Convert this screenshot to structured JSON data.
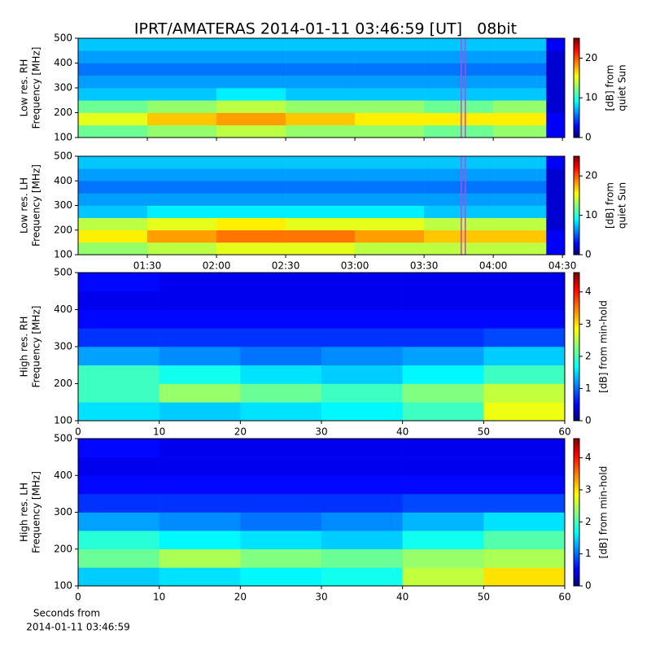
{
  "title": "IPRT/AMATERAS 2014-01-11 03:46:59 [UT]   08bit",
  "xlabel": [
    "Seconds from",
    "2014-01-11 03:46:59"
  ],
  "chart_data": [
    {
      "type": "heatmap",
      "ylabel": [
        "Low res. RH",
        "Frequency [MHz]"
      ],
      "colorbar_label": [
        "[dB] from",
        "quiet Sun"
      ],
      "ylim": [
        100,
        500
      ],
      "yticks": [
        100,
        200,
        300,
        400,
        500
      ],
      "xlim": [
        60,
        271
      ],
      "xticks": [
        90,
        120,
        150,
        180,
        210,
        240,
        270
      ],
      "clim": [
        0,
        25
      ],
      "cticks": [
        0,
        10,
        20
      ],
      "highlight_x": 227,
      "x_edges": [
        60,
        90,
        120,
        150,
        180,
        210,
        240,
        263,
        271
      ],
      "y_edges": [
        100,
        150,
        200,
        250,
        300,
        350,
        400,
        450,
        500
      ],
      "z": [
        [
          12,
          13,
          14,
          13,
          13,
          12,
          13,
          3
        ],
        [
          15,
          17,
          18,
          17,
          16,
          16,
          16,
          3
        ],
        [
          12,
          13,
          14,
          13,
          13,
          12,
          13,
          2
        ],
        [
          8,
          8,
          9,
          8,
          8,
          8,
          8,
          2
        ],
        [
          7,
          7,
          7,
          7,
          7,
          7,
          7,
          2
        ],
        [
          6,
          6,
          6,
          6,
          6,
          6,
          6,
          2
        ],
        [
          7,
          7,
          7,
          7,
          7,
          7,
          7,
          2
        ],
        [
          8,
          8,
          8,
          8,
          8,
          8,
          8,
          3
        ]
      ]
    },
    {
      "type": "heatmap",
      "ylabel": [
        "Low res. LH",
        "Frequency [MHz]"
      ],
      "colorbar_label": [
        "[dB] from",
        "quiet Sun"
      ],
      "ylim": [
        100,
        500
      ],
      "yticks": [
        100,
        200,
        300,
        400,
        500
      ],
      "xlim": [
        60,
        271
      ],
      "xticks": [
        {
          "value": 90,
          "label": "01:30"
        },
        {
          "value": 120,
          "label": "02:00"
        },
        {
          "value": 150,
          "label": "02:30"
        },
        {
          "value": 180,
          "label": "03:00"
        },
        {
          "value": 210,
          "label": "03:30"
        },
        {
          "value": 240,
          "label": "04:00"
        },
        {
          "value": 270,
          "label": "04:30"
        }
      ],
      "clim": [
        0,
        25
      ],
      "cticks": [
        0,
        10,
        20
      ],
      "highlight_x": 227,
      "x_edges": [
        60,
        90,
        120,
        150,
        180,
        210,
        240,
        263,
        271
      ],
      "y_edges": [
        100,
        150,
        200,
        250,
        300,
        350,
        400,
        450,
        500
      ],
      "z": [
        [
          13,
          14,
          15,
          15,
          14,
          14,
          14,
          3
        ],
        [
          16,
          18,
          19,
          19,
          18,
          17,
          17,
          3
        ],
        [
          14,
          15,
          16,
          15,
          15,
          14,
          14,
          2
        ],
        [
          8,
          9,
          9,
          9,
          9,
          8,
          8,
          2
        ],
        [
          7,
          7,
          7,
          7,
          7,
          7,
          7,
          2
        ],
        [
          6,
          6,
          6,
          6,
          6,
          6,
          6,
          2
        ],
        [
          7,
          7,
          7,
          7,
          7,
          7,
          7,
          2
        ],
        [
          8,
          8,
          8,
          8,
          8,
          8,
          8,
          3
        ]
      ]
    },
    {
      "type": "heatmap",
      "ylabel": [
        "High res. RH",
        "Frequency [MHz]"
      ],
      "colorbar_label": [
        "[dB] from min-hold"
      ],
      "ylim": [
        100,
        500
      ],
      "yticks": [
        100,
        200,
        300,
        400,
        500
      ],
      "xlim": [
        0,
        60
      ],
      "xticks": [
        0,
        10,
        20,
        30,
        40,
        50,
        60
      ],
      "clim": [
        0,
        4.6
      ],
      "cticks": [
        0,
        1,
        2,
        3,
        4
      ],
      "x_edges": [
        0,
        10,
        20,
        30,
        40,
        50,
        60
      ],
      "y_edges": [
        100,
        150,
        200,
        250,
        300,
        350,
        400,
        450,
        500
      ],
      "z": [
        [
          1.6,
          1.5,
          1.6,
          1.7,
          2.0,
          2.8
        ],
        [
          2.0,
          2.4,
          2.2,
          2.0,
          2.3,
          2.6
        ],
        [
          2.0,
          1.8,
          1.6,
          1.5,
          1.7,
          2.0
        ],
        [
          1.3,
          1.2,
          1.1,
          1.2,
          1.3,
          1.5
        ],
        [
          0.8,
          0.8,
          0.8,
          0.8,
          0.8,
          0.9
        ],
        [
          0.6,
          0.6,
          0.6,
          0.6,
          0.6,
          0.6
        ],
        [
          0.5,
          0.5,
          0.5,
          0.5,
          0.5,
          0.5
        ],
        [
          0.6,
          0.5,
          0.5,
          0.5,
          0.5,
          0.5
        ]
      ]
    },
    {
      "type": "heatmap",
      "ylabel": [
        "High res. LH",
        "Frequency [MHz]"
      ],
      "colorbar_label": [
        "[dB] from min-hold"
      ],
      "ylim": [
        100,
        500
      ],
      "yticks": [
        100,
        200,
        300,
        400,
        500
      ],
      "xlim": [
        0,
        60
      ],
      "xticks": [
        0,
        10,
        20,
        30,
        40,
        50,
        60
      ],
      "clim": [
        0,
        4.6
      ],
      "cticks": [
        0,
        1,
        2,
        3,
        4
      ],
      "x_edges": [
        0,
        10,
        20,
        30,
        40,
        50,
        60
      ],
      "y_edges": [
        100,
        150,
        200,
        250,
        300,
        350,
        400,
        450,
        500
      ],
      "z": [
        [
          1.5,
          1.6,
          1.7,
          1.8,
          2.6,
          3.0
        ],
        [
          2.2,
          2.5,
          2.3,
          2.2,
          2.4,
          2.5
        ],
        [
          1.9,
          1.7,
          1.6,
          1.5,
          1.8,
          2.1
        ],
        [
          1.3,
          1.2,
          1.1,
          1.2,
          1.4,
          1.6
        ],
        [
          0.8,
          0.8,
          0.8,
          0.8,
          0.9,
          0.9
        ],
        [
          0.6,
          0.6,
          0.6,
          0.6,
          0.6,
          0.6
        ],
        [
          0.5,
          0.5,
          0.5,
          0.5,
          0.5,
          0.5
        ],
        [
          0.6,
          0.5,
          0.5,
          0.5,
          0.5,
          0.5
        ]
      ]
    }
  ]
}
